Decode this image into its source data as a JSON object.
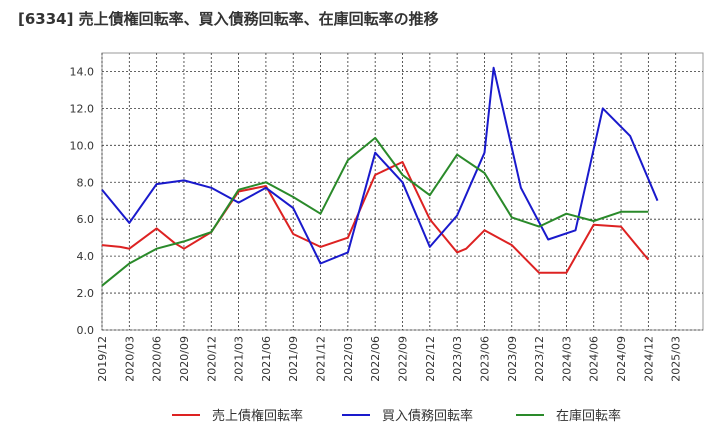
{
  "chart_data": {
    "type": "line",
    "title": "[6334]  売上債権回転率、買入債務回転率、在庫回転率の推移",
    "xlabel": "",
    "ylabel": "",
    "ylim": [
      0,
      15
    ],
    "yticks": [
      "0.0",
      "2.0",
      "4.0",
      "6.0",
      "8.0",
      "10.0",
      "12.0",
      "14.0"
    ],
    "ytick_values": [
      0,
      2,
      4,
      6,
      8,
      10,
      12,
      14
    ],
    "xtick_labels": [
      "2019/12",
      "2020/03",
      "2020/06",
      "2020/09",
      "2020/12",
      "2021/03",
      "2021/06",
      "2021/09",
      "2021/12",
      "2022/03",
      "2022/06",
      "2022/09",
      "2022/12",
      "2023/03",
      "2023/06",
      "2023/09",
      "2023/12",
      "2024/03",
      "2024/06",
      "2024/09",
      "2024/12",
      "2025/03"
    ],
    "grid": true,
    "legend_position": "bottom",
    "x_start": "2019/12",
    "x_step_months": 1,
    "series": [
      {
        "name": "売上債権回転率",
        "color": "#dd2222",
        "values": [
          4.6,
          null,
          4.5,
          4.4,
          null,
          null,
          5.5,
          null,
          4.7,
          4.4,
          null,
          null,
          5.3,
          null,
          null,
          7.5,
          null,
          null,
          7.8,
          null,
          null,
          5.2,
          null,
          null,
          4.5,
          null,
          null,
          5.0,
          null,
          null,
          8.4,
          null,
          null,
          9.1,
          null,
          null,
          6.0,
          null,
          null,
          4.2,
          4.4,
          null,
          5.4,
          null,
          null,
          4.6,
          null,
          null,
          3.1,
          null,
          null,
          3.1,
          null,
          null,
          5.7,
          null,
          null,
          5.6,
          null,
          null,
          3.8
        ]
      },
      {
        "name": "買入債務回転率",
        "color": "#1a1acc",
        "values": [
          7.6,
          null,
          null,
          5.8,
          null,
          null,
          7.9,
          null,
          null,
          8.1,
          null,
          null,
          7.7,
          null,
          null,
          6.9,
          null,
          null,
          7.7,
          null,
          null,
          6.6,
          null,
          null,
          3.6,
          null,
          null,
          4.2,
          null,
          null,
          9.6,
          null,
          null,
          8.0,
          null,
          null,
          4.5,
          null,
          null,
          6.2,
          null,
          null,
          9.6,
          14.2,
          null,
          null,
          7.7,
          null,
          null,
          4.9,
          null,
          null,
          5.4,
          null,
          null,
          12.0,
          null,
          null,
          10.5,
          null,
          null,
          7.0
        ]
      },
      {
        "name": "在庫回転率",
        "color": "#2a8a2a",
        "values": [
          2.4,
          null,
          null,
          3.6,
          null,
          null,
          4.4,
          null,
          null,
          4.8,
          null,
          null,
          5.3,
          null,
          null,
          7.6,
          null,
          null,
          8.0,
          null,
          null,
          7.2,
          null,
          null,
          6.3,
          null,
          null,
          9.2,
          null,
          null,
          10.4,
          null,
          null,
          8.4,
          null,
          null,
          7.3,
          null,
          null,
          9.5,
          null,
          null,
          8.5,
          null,
          null,
          6.1,
          null,
          null,
          5.6,
          null,
          null,
          6.3,
          null,
          null,
          5.9,
          null,
          null,
          6.4,
          null,
          null,
          6.4
        ]
      }
    ]
  }
}
